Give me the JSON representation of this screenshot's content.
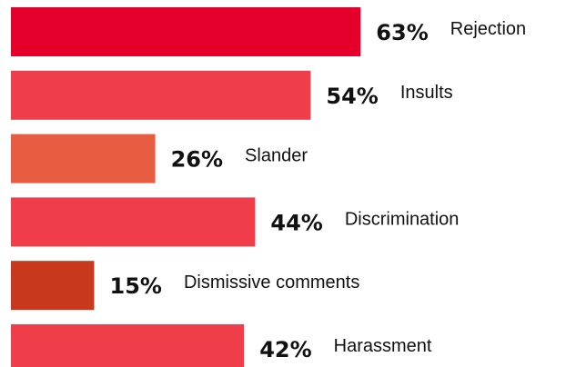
{
  "chart_data": {
    "type": "bar",
    "orientation": "horizontal",
    "categories": [
      "Rejection",
      "Insults",
      "Slander",
      "Discrimination",
      "Dismissive comments",
      "Harassment"
    ],
    "values": [
      63,
      54,
      26,
      44,
      15,
      42
    ],
    "value_labels": [
      "63%",
      "54%",
      "26%",
      "44%",
      "15%",
      "42%"
    ],
    "bar_colors": [
      "#e4002b",
      "#ef3e4a",
      "#e85c42",
      "#ef3e4a",
      "#c8381d",
      "#ef3e4a"
    ],
    "xlim": [
      0,
      100
    ],
    "grid": false,
    "legend": "none",
    "title": "",
    "xlabel": "",
    "ylabel": ""
  }
}
